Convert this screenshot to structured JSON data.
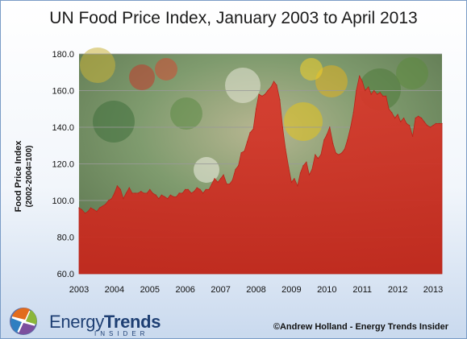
{
  "chart_data": {
    "type": "area",
    "title": "UN Food Price Index, January 2003 to April 2013",
    "ylabel": "Food Price Index",
    "ylabel_sub": "(2002-2004=100)",
    "xlabel": "",
    "ylim": [
      60,
      180
    ],
    "yticks": [
      "60.0",
      "80.0",
      "100.0",
      "120.0",
      "140.0",
      "160.0",
      "180.0"
    ],
    "xticks": [
      "2003",
      "2004",
      "2005",
      "2006",
      "2007",
      "2008",
      "2009",
      "2010",
      "2011",
      "2012",
      "2013"
    ],
    "grid": true,
    "series": [
      {
        "x": [
          2003.0,
          2003.08,
          2003.17,
          2003.25,
          2003.33,
          2003.42,
          2003.5,
          2003.58,
          2003.67,
          2003.75,
          2003.83,
          2003.92,
          2004.0,
          2004.08,
          2004.17,
          2004.25,
          2004.33,
          2004.42,
          2004.5,
          2004.58,
          2004.67,
          2004.75,
          2004.83,
          2004.92,
          2005.0,
          2005.08,
          2005.17,
          2005.25,
          2005.33,
          2005.42,
          2005.5,
          2005.58,
          2005.67,
          2005.75,
          2005.83,
          2005.92,
          2006.0,
          2006.08,
          2006.17,
          2006.25,
          2006.33,
          2006.42,
          2006.5,
          2006.58,
          2006.67,
          2006.75,
          2006.83,
          2006.92,
          2007.0,
          2007.08,
          2007.17,
          2007.25,
          2007.33,
          2007.42,
          2007.5,
          2007.58,
          2007.67,
          2007.75,
          2007.83,
          2007.92,
          2008.0,
          2008.08,
          2008.17,
          2008.25,
          2008.33,
          2008.42,
          2008.5,
          2008.58,
          2008.67,
          2008.75,
          2008.83,
          2008.92,
          2009.0,
          2009.08,
          2009.17,
          2009.25,
          2009.33,
          2009.42,
          2009.5,
          2009.58,
          2009.67,
          2009.75,
          2009.83,
          2009.92,
          2010.0,
          2010.08,
          2010.17,
          2010.25,
          2010.33,
          2010.42,
          2010.5,
          2010.58,
          2010.67,
          2010.75,
          2010.83,
          2010.92,
          2011.0,
          2011.08,
          2011.17,
          2011.25,
          2011.33,
          2011.42,
          2011.5,
          2011.58,
          2011.67,
          2011.75,
          2011.83,
          2011.92,
          2012.0,
          2012.08,
          2012.17,
          2012.25,
          2012.33,
          2012.42,
          2012.5,
          2012.58,
          2012.67,
          2012.75,
          2012.83,
          2012.92,
          2013.0,
          2013.08,
          2013.17,
          2013.25
        ],
        "values": [
          96,
          95,
          93,
          94,
          96,
          95,
          94,
          96,
          97,
          98,
          100,
          101,
          104,
          108,
          106,
          101,
          104,
          107,
          104,
          104,
          104,
          105,
          104,
          104,
          106,
          104,
          103,
          101,
          103,
          102,
          101,
          103,
          102,
          102,
          104,
          104,
          106,
          106,
          104,
          105,
          107,
          106,
          104,
          106,
          106,
          109,
          112,
          110,
          112,
          114,
          109,
          109,
          111,
          117,
          119,
          126,
          127,
          132,
          137,
          139,
          150,
          158,
          157,
          158,
          160,
          162,
          165,
          163,
          155,
          140,
          128,
          118,
          110,
          112,
          108,
          115,
          119,
          121,
          114,
          117,
          125,
          123,
          125,
          133,
          136,
          140,
          131,
          126,
          125,
          126,
          128,
          133,
          140,
          148,
          160,
          168,
          165,
          160,
          162,
          158,
          160,
          158,
          159,
          157,
          157,
          150,
          148,
          145,
          147,
          143,
          145,
          142,
          141,
          135,
          145,
          146,
          145,
          143,
          141,
          140,
          141,
          142,
          142,
          142
        ]
      }
    ]
  },
  "credit": "©Andrew Holland - Energy Trends Insider",
  "logo": {
    "name_part1": "Energy",
    "name_part2": "Trends",
    "tagline": "INSIDER"
  },
  "colors": {
    "fill": "#d8392c",
    "plot_bg": "#8aa378",
    "frame_border": "#7a9cc6"
  }
}
